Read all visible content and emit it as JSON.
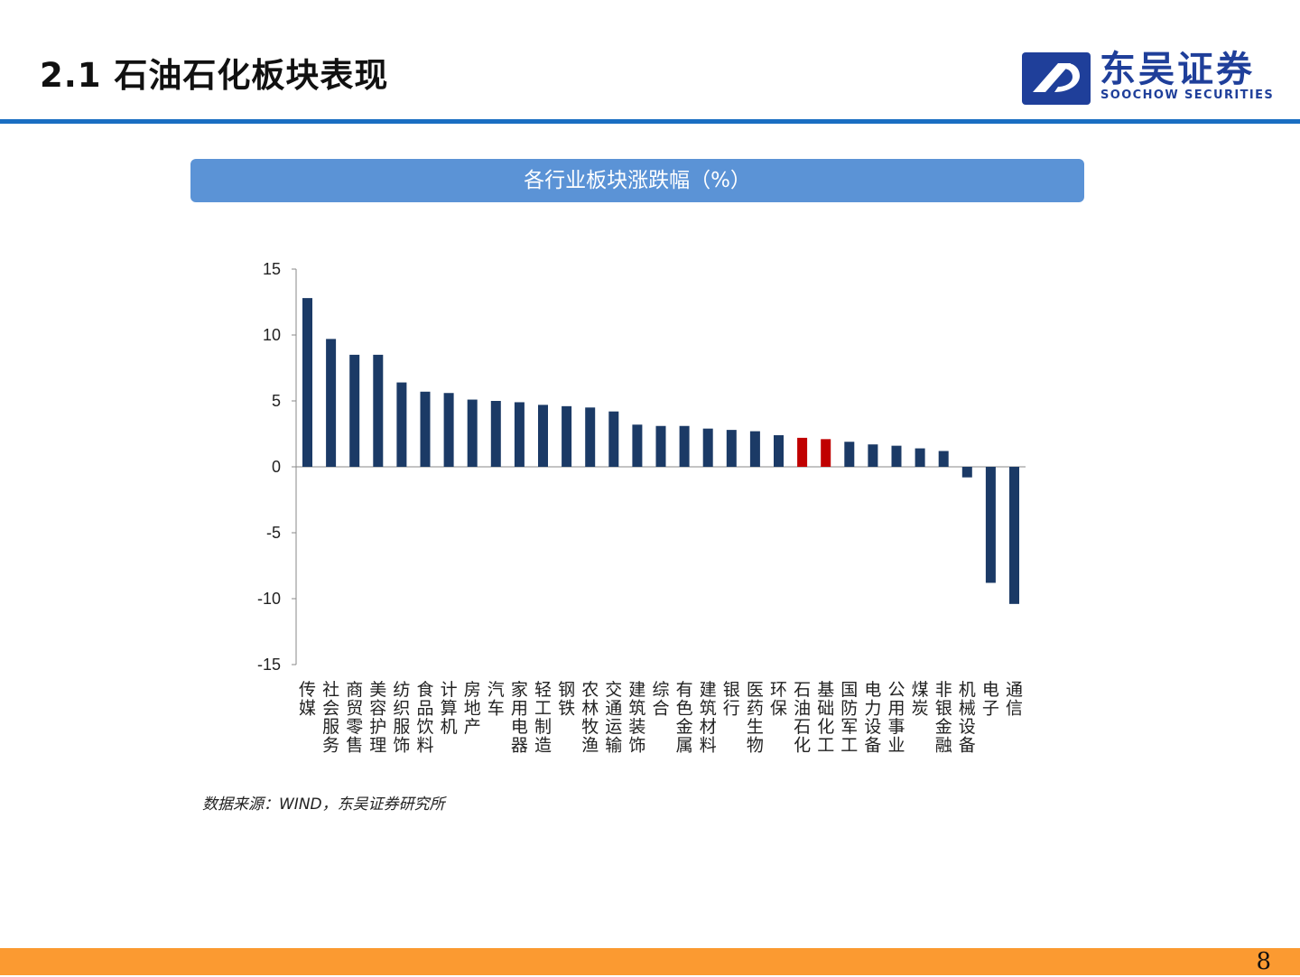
{
  "header": {
    "title": "2.1 石油石化板块表现",
    "logo": {
      "cn": "东吴证券",
      "en": "SOOCHOW SECURITIES"
    }
  },
  "chart_banner": "各行业板块涨跌幅（%）",
  "chart_data": {
    "type": "bar",
    "title": "各行业板块涨跌幅（%）",
    "ylim": [
      -15,
      15
    ],
    "yticks": [
      15,
      10,
      5,
      0,
      -5,
      -10,
      -15
    ],
    "grid": false,
    "legend": "none",
    "categories": [
      "传媒",
      "社会服务",
      "商贸零售",
      "美容护理",
      "纺织服饰",
      "食品饮料",
      "计算机",
      "房地产",
      "汽车",
      "家用电器",
      "轻工制造",
      "钢铁",
      "农林牧渔",
      "交通运输",
      "建筑装饰",
      "综合",
      "有色金属",
      "建筑材料",
      "银行",
      "医药生物",
      "环保",
      "石油石化",
      "基础化工",
      "国防军工",
      "电力设备",
      "公用事业",
      "煤炭",
      "非银金融",
      "机械设备",
      "电子",
      "通信"
    ],
    "values": [
      12.8,
      9.7,
      8.5,
      8.5,
      6.4,
      5.7,
      5.6,
      5.1,
      5.0,
      4.9,
      4.7,
      4.6,
      4.5,
      4.2,
      3.2,
      3.1,
      3.1,
      2.9,
      2.8,
      2.7,
      2.4,
      2.2,
      2.1,
      1.9,
      1.7,
      1.6,
      1.4,
      1.2,
      -0.8,
      -8.8,
      -10.4
    ],
    "highlight": [
      "石油石化",
      "基础化工"
    ],
    "bar_color": "#1b3a66",
    "highlight_color": "#c00000"
  },
  "source": "数据来源：WIND，东吴证券研究所",
  "page_number": "8",
  "colors": {
    "header_rule": "#1a6ec2",
    "banner": "#5b93d6",
    "footer": "#fb9a31",
    "logo": "#1f3f9a"
  }
}
